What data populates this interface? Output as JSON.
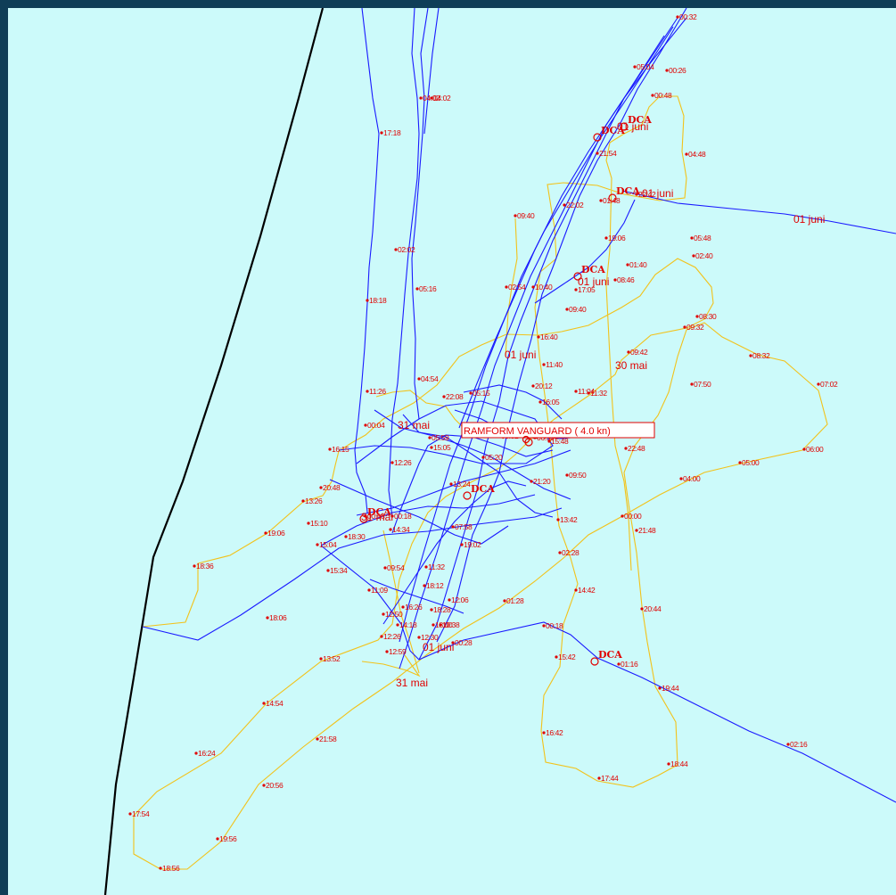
{
  "colors": {
    "frame": "#0f3e57",
    "sea": "#ccfafa",
    "coastline": "#000000",
    "track_primary": "#1a1aff",
    "track_secondary": "#f2c21a",
    "labels": "#e00000"
  },
  "vessel": {
    "name": "RAMFORM VANGUARD",
    "speed": "4.0 kn",
    "label": "RAMFORM VANGUARD (  4.0 kn)"
  },
  "marker_text": "DCA",
  "date_labels": [
    "01 juni",
    "01 juni",
    "01 juni",
    "01 juni",
    "01 juni",
    "30 mai",
    "31 mai",
    "31 mai",
    "31 mai",
    "01 juni"
  ],
  "time_labels": [
    "00:32",
    "05:04",
    "00:26",
    "00:48",
    "04:48",
    "04:02",
    "04:02",
    "17:18",
    "21:54",
    "22:42",
    "09:40",
    "22:02",
    "01:48",
    "19:06",
    "02:02",
    "05:48",
    "02:40",
    "01:40",
    "02:54",
    "10:40",
    "17:05",
    "08:46",
    "05:16",
    "09:40",
    "08:30",
    "16:40",
    "18:18",
    "09:42",
    "09:32",
    "04:54",
    "11:40",
    "08:32",
    "07:02",
    "11:26",
    "20:12",
    "11:04",
    "11:32",
    "22:08",
    "05:15",
    "16:05",
    "07:50",
    "00:04",
    "05:52",
    "05:59",
    "06:52",
    "15:48",
    "15:05",
    "22:48",
    "05:20",
    "16:15",
    "12:26",
    "05:00",
    "06:00",
    "13:24",
    "09:50",
    "04:00",
    "21:20",
    "20:48",
    "13:26",
    "00:18",
    "00:18",
    "13:42",
    "00:00",
    "15:10",
    "19:06",
    "14:34",
    "18:30",
    "07:58",
    "15:04",
    "19:02",
    "21:48",
    "02:28",
    "18:36",
    "09:54",
    "11:32",
    "15:34",
    "18:12",
    "14:42",
    "11:09",
    "12:06",
    "16:26",
    "18:28",
    "18:06",
    "12:50",
    "14:18",
    "12:26",
    "18:00",
    "01:28",
    "00:18",
    "10:38",
    "12:59",
    "12:30",
    "13:52",
    "00:28",
    "15:42",
    "01:16",
    "20:44",
    "19:44",
    "14:54",
    "16:42",
    "21:58",
    "16:24",
    "02:16",
    "18:44",
    "20:56",
    "17:44",
    "17:54",
    "19:56",
    "18:56"
  ]
}
